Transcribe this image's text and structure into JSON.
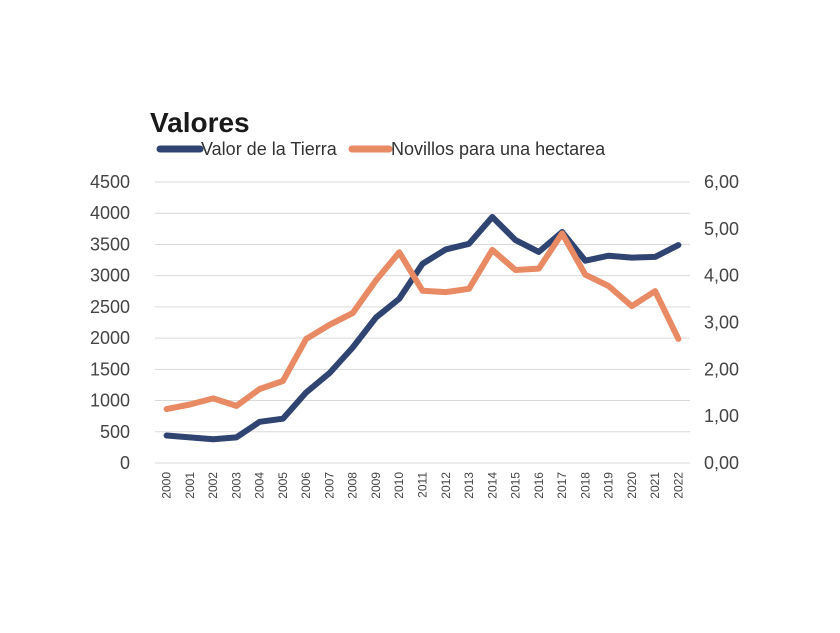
{
  "chart_data": {
    "type": "line",
    "title": "Valores",
    "x": [
      "2000",
      "2001",
      "2002",
      "2003",
      "2004",
      "2005",
      "2006",
      "2007",
      "2008",
      "2009",
      "2010",
      "2011",
      "2012",
      "2013",
      "2014",
      "2015",
      "2016",
      "2017",
      "2018",
      "2019",
      "2020",
      "2021",
      "2022"
    ],
    "y_left": {
      "ticks": [
        "0",
        "500",
        "1000",
        "1500",
        "2000",
        "2500",
        "3000",
        "3500",
        "4000",
        "4500"
      ],
      "ylim": [
        0,
        4500
      ]
    },
    "y_right": {
      "ticks": [
        "0,00",
        "1,00",
        "2,00",
        "3,00",
        "4,00",
        "5,00",
        "6,00"
      ],
      "ylim": [
        0,
        6
      ]
    },
    "series": [
      {
        "name": "Valor de la Tierra",
        "axis": "left",
        "color": "#2f4470",
        "values": [
          440,
          410,
          380,
          410,
          660,
          710,
          1130,
          1440,
          1850,
          2330,
          2630,
          3190,
          3420,
          3510,
          3940,
          3570,
          3380,
          3700,
          3240,
          3320,
          3290,
          3300,
          3490
        ]
      },
      {
        "name": "Novillos para una hectarea",
        "axis": "right",
        "color": "#e88a64",
        "values": [
          1.15,
          1.25,
          1.38,
          1.22,
          1.58,
          1.75,
          2.65,
          2.95,
          3.2,
          3.9,
          4.5,
          3.68,
          3.65,
          3.72,
          4.55,
          4.12,
          4.15,
          4.9,
          4.02,
          3.78,
          3.35,
          3.67,
          2.65
        ]
      }
    ],
    "grid": true,
    "legend_position": "top-left"
  }
}
